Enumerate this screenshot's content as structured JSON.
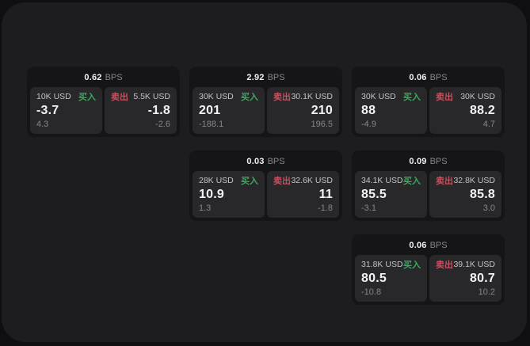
{
  "theme": {
    "page_bg": "#0f0f11",
    "panel_bg": "#1d1d1f",
    "card_bg": "#151517",
    "tile_bg": "#28282b",
    "buy_color": "#3ba85c",
    "sell_color": "#c84f5f"
  },
  "labels": {
    "bps_unit": "BPS",
    "buy": "买入",
    "sell": "卖出"
  },
  "cards": [
    {
      "bps": "0.62",
      "buy": {
        "amount": "10K USD",
        "price": "-3.7",
        "change": "4.3"
      },
      "sell": {
        "amount": "5.5K USD",
        "price": "-1.8",
        "change": "-2.6"
      }
    },
    {
      "bps": "2.92",
      "buy": {
        "amount": "30K USD",
        "price": "201",
        "change": "-188.1"
      },
      "sell": {
        "amount": "30.1K USD",
        "price": "210",
        "change": "196.5"
      }
    },
    {
      "bps": "0.06",
      "buy": {
        "amount": "30K USD",
        "price": "88",
        "change": "-4.9"
      },
      "sell": {
        "amount": "30K USD",
        "price": "88.2",
        "change": "4.7"
      }
    },
    {
      "bps": "0.03",
      "buy": {
        "amount": "28K USD",
        "price": "10.9",
        "change": "1.3"
      },
      "sell": {
        "amount": "32.6K USD",
        "price": "11",
        "change": "-1.8"
      }
    },
    {
      "bps": "0.09",
      "buy": {
        "amount": "34.1K USD",
        "price": "85.5",
        "change": "-3.1"
      },
      "sell": {
        "amount": "32.8K USD",
        "price": "85.8",
        "change": "3.0"
      }
    },
    {
      "bps": "0.06",
      "buy": {
        "amount": "31.8K USD",
        "price": "80.5",
        "change": "-10.8"
      },
      "sell": {
        "amount": "39.1K USD",
        "price": "80.7",
        "change": "10.2"
      }
    }
  ]
}
